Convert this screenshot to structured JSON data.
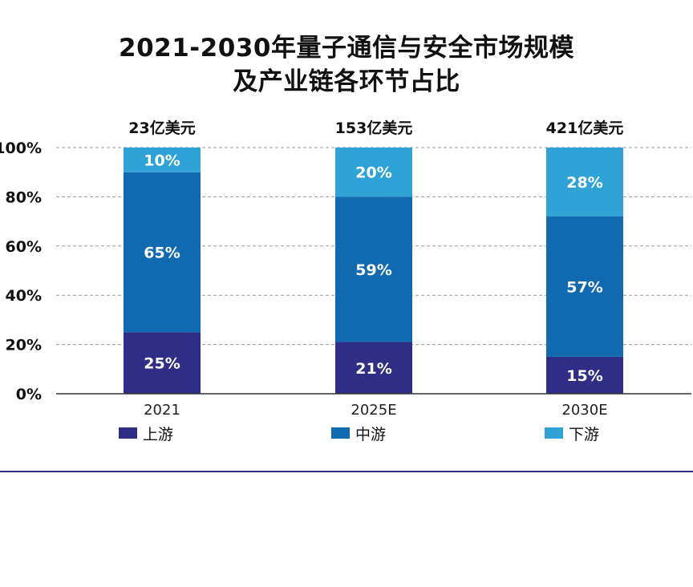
{
  "header": {
    "title_line1": "2021-2030年量子通信与安全市场规模",
    "title_line2": "及产业链各环节占比"
  },
  "colors": {
    "upstream": "#2e2e86",
    "midstream": "#1169b0",
    "downstream": "#2fa3d6",
    "grid": "#9a9a9a",
    "axis": "#333333"
  },
  "chart_data": {
    "type": "bar",
    "stacked": true,
    "categories": [
      "2021",
      "2025E",
      "2030E"
    ],
    "totals": [
      "23亿美元",
      "153亿美元",
      "421亿美元"
    ],
    "series": [
      {
        "name": "上游",
        "values": [
          25,
          21,
          15
        ],
        "labels": [
          "25%",
          "21%",
          "15%"
        ]
      },
      {
        "name": "中游",
        "values": [
          65,
          59,
          57
        ],
        "labels": [
          "65%",
          "59%",
          "57%"
        ]
      },
      {
        "name": "下游",
        "values": [
          10,
          20,
          28
        ],
        "labels": [
          "10%",
          "20%",
          "28%"
        ]
      }
    ],
    "ylim": [
      0,
      100
    ],
    "yticks": [
      "0%",
      "20%",
      "40%",
      "60%",
      "80%",
      "100%"
    ],
    "grid": true,
    "legend_position": "bottom"
  }
}
